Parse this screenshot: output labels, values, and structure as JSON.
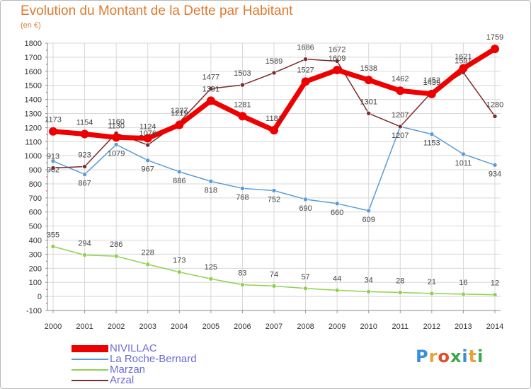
{
  "title": "Evolution du Montant de la Dette par Habitant",
  "unit_label": "(en €)",
  "logo": {
    "text": "Proxiti",
    "letter_colors": [
      "#3a8fd8",
      "#e8a23a",
      "#e24d2b",
      "#3aa84a",
      "#3a8fd8",
      "#e8a23a",
      "#3aa84a"
    ]
  },
  "chart_data": {
    "type": "line",
    "title": "Evolution du Montant de la Dette par Habitant",
    "ylabel": "(en €)",
    "x": [
      "2000",
      "2001",
      "2002",
      "2003",
      "2004",
      "2005",
      "2006",
      "2007",
      "2008",
      "2009",
      "2010",
      "2011",
      "2012",
      "2013",
      "2014"
    ],
    "ylim": [
      -100,
      1800
    ],
    "yticks": [
      -100,
      0,
      100,
      200,
      300,
      400,
      500,
      600,
      700,
      800,
      900,
      1000,
      1100,
      1200,
      1300,
      1400,
      1500,
      1600,
      1700,
      1800
    ],
    "grid": true,
    "legend": "bottom-left",
    "series": [
      {
        "name": "NIVILLAC",
        "color": "#ee0000",
        "values": [
          1173,
          1154,
          1130,
          1124,
          1219,
          1391,
          1281,
          1181,
          1527,
          1609,
          1538,
          1462,
          1439,
          1621,
          1759
        ]
      },
      {
        "name": "La Roche-Bernard",
        "color": "#5b9bd5",
        "values": [
          962,
          867,
          1079,
          967,
          886,
          818,
          768,
          752,
          690,
          660,
          609,
          1207,
          1153,
          1011,
          934
        ]
      },
      {
        "name": "Marzan",
        "color": "#8fd14f",
        "values": [
          355,
          294,
          286,
          228,
          173,
          125,
          83,
          74,
          57,
          44,
          34,
          28,
          21,
          16,
          12
        ]
      },
      {
        "name": "Arzal",
        "color": "#7b2c2c",
        "values": [
          913,
          923,
          1160,
          1076,
          1237,
          1477,
          1503,
          1589,
          1686,
          1672,
          1301,
          1207,
          1452,
          1591,
          1280
        ]
      }
    ]
  }
}
